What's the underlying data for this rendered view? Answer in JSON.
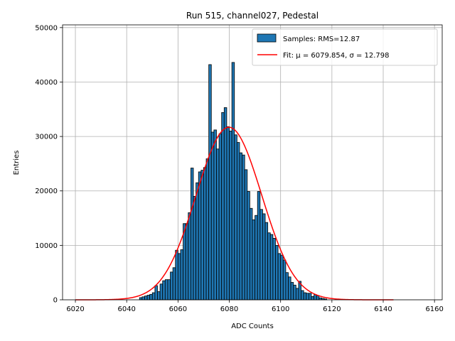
{
  "chart_data": {
    "type": "bar",
    "title": "Run 515, channel027, Pedestal",
    "xlabel": "ADC Counts",
    "ylabel": "Entries",
    "xlim": [
      6015,
      6163
    ],
    "ylim": [
      0,
      50500
    ],
    "xticks": [
      6020,
      6040,
      6060,
      6080,
      6100,
      6120,
      6140,
      6160
    ],
    "yticks": [
      0,
      10000,
      20000,
      30000,
      40000,
      50000
    ],
    "grid": true,
    "legend_position": "top-right",
    "colors": {
      "bars": "#1f77b4",
      "bar_edge": "#000000",
      "fit": "#ff0000"
    },
    "series": [
      {
        "name": "Samples: RMS=12.87",
        "type": "histogram",
        "bin_width": 1,
        "bins": [
          6045,
          6046,
          6047,
          6048,
          6049,
          6050,
          6051,
          6052,
          6053,
          6054,
          6055,
          6056,
          6057,
          6058,
          6059,
          6060,
          6061,
          6062,
          6063,
          6064,
          6065,
          6066,
          6067,
          6068,
          6069,
          6070,
          6071,
          6072,
          6073,
          6074,
          6075,
          6076,
          6077,
          6078,
          6079,
          6080,
          6081,
          6082,
          6083,
          6084,
          6085,
          6086,
          6087,
          6088,
          6089,
          6090,
          6091,
          6092,
          6093,
          6094,
          6095,
          6096,
          6097,
          6098,
          6099,
          6100,
          6101,
          6102,
          6103,
          6104,
          6105,
          6106,
          6107,
          6108,
          6109,
          6110,
          6111,
          6112,
          6113,
          6114,
          6115,
          6116,
          6117
        ],
        "values": [
          400,
          550,
          700,
          850,
          1000,
          1300,
          2600,
          1500,
          2900,
          3500,
          3700,
          3700,
          5100,
          5900,
          9100,
          8500,
          9200,
          14000,
          14000,
          16000,
          24200,
          19000,
          21500,
          23500,
          23800,
          24300,
          25900,
          43200,
          30800,
          31200,
          27700,
          30500,
          34400,
          35300,
          31800,
          31000,
          43600,
          30300,
          28900,
          27000,
          26600,
          23900,
          19900,
          16800,
          14700,
          15500,
          19900,
          16600,
          15800,
          14200,
          12300,
          12000,
          11300,
          10000,
          8500,
          8200,
          7300,
          5000,
          4200,
          3200,
          2700,
          2100,
          3400,
          1700,
          1300,
          1200,
          1200,
          600,
          950,
          800,
          350,
          250,
          150
        ]
      },
      {
        "name": "Fit: μ = 6079.854, σ = 12.798",
        "type": "line",
        "mu": 6079.854,
        "sigma": 12.798,
        "amplitude": 31700,
        "x_range": [
          6020,
          6144
        ]
      }
    ]
  }
}
